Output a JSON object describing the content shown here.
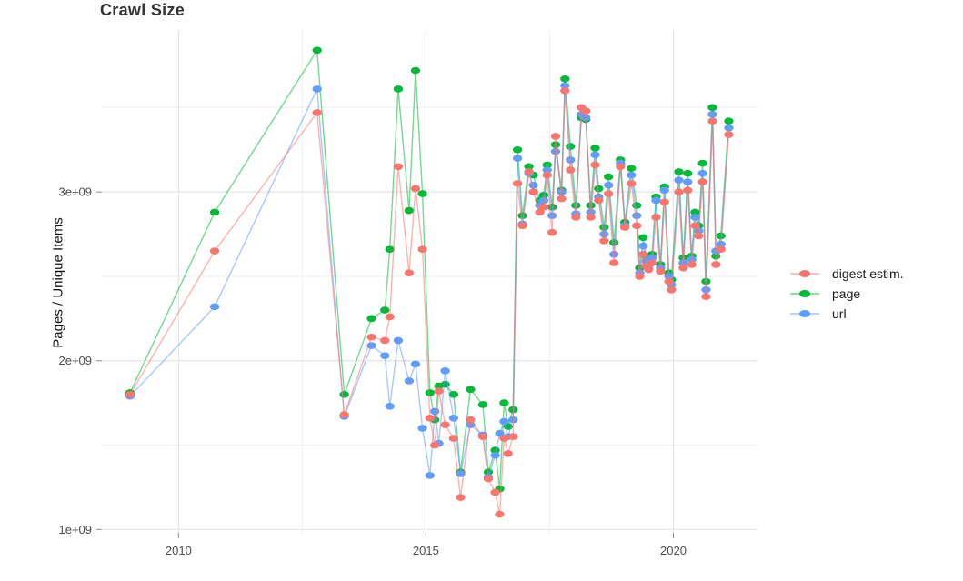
{
  "title": "Crawl Size",
  "chart_data": {
    "type": "line",
    "title": "Crawl Size",
    "xlabel": "",
    "ylabel": "Pages / Unique Items",
    "x_unit": "year (crawl date)",
    "y_unit": "count, values in units of 1e9 (billions)",
    "xlim": [
      2008.45,
      2021.7
    ],
    "ylim": [
      0.98,
      3.96
    ],
    "grid": true,
    "legend_position": "right",
    "axes": {
      "x_ticks": [
        {
          "value": 2010,
          "label": "2010"
        },
        {
          "value": 2015,
          "label": "2015"
        },
        {
          "value": 2020,
          "label": "2020"
        }
      ],
      "x_minor": [
        2012.5,
        2017.5
      ],
      "y_ticks": [
        {
          "value": 1,
          "label": "1e+09"
        },
        {
          "value": 2,
          "label": "2e+09"
        },
        {
          "value": 3,
          "label": "3e+09"
        }
      ],
      "y_minor": [
        1.5,
        2.5,
        3.5
      ]
    },
    "series": [
      {
        "name": "digest estim.",
        "color": "#F8766D",
        "points": [
          [
            2009.02,
            1.8
          ],
          [
            2010.73,
            2.65
          ],
          [
            2012.8,
            3.47
          ],
          [
            2013.35,
            1.68
          ],
          [
            2013.9,
            2.14
          ],
          [
            2014.17,
            2.12
          ],
          [
            2014.27,
            2.26
          ],
          [
            2014.44,
            3.15
          ],
          [
            2014.66,
            2.52
          ],
          [
            2014.79,
            3.02
          ],
          [
            2014.93,
            2.66
          ],
          [
            2015.08,
            1.66
          ],
          [
            2015.18,
            1.5
          ],
          [
            2015.26,
            1.82
          ],
          [
            2015.39,
            1.62
          ],
          [
            2015.56,
            1.54
          ],
          [
            2015.7,
            1.19
          ],
          [
            2015.9,
            1.65
          ],
          [
            2016.15,
            1.55
          ],
          [
            2016.26,
            1.3
          ],
          [
            2016.4,
            1.22
          ],
          [
            2016.49,
            1.09
          ],
          [
            2016.58,
            1.54
          ],
          [
            2016.66,
            1.45
          ],
          [
            2016.76,
            1.55
          ],
          [
            2016.85,
            3.05
          ],
          [
            2016.95,
            2.8
          ],
          [
            2017.08,
            3.12
          ],
          [
            2017.17,
            3.0
          ],
          [
            2017.3,
            2.88
          ],
          [
            2017.38,
            2.91
          ],
          [
            2017.45,
            3.1
          ],
          [
            2017.55,
            2.76
          ],
          [
            2017.62,
            3.33
          ],
          [
            2017.74,
            2.96
          ],
          [
            2017.81,
            3.6
          ],
          [
            2017.92,
            3.13
          ],
          [
            2018.03,
            2.85
          ],
          [
            2018.14,
            3.5
          ],
          [
            2018.23,
            3.48
          ],
          [
            2018.33,
            2.85
          ],
          [
            2018.42,
            3.16
          ],
          [
            2018.49,
            2.95
          ],
          [
            2018.6,
            2.71
          ],
          [
            2018.69,
            2.99
          ],
          [
            2018.8,
            2.58
          ],
          [
            2018.93,
            3.15
          ],
          [
            2019.02,
            2.79
          ],
          [
            2019.15,
            3.05
          ],
          [
            2019.26,
            2.8
          ],
          [
            2019.32,
            2.5
          ],
          [
            2019.39,
            2.63
          ],
          [
            2019.45,
            2.56
          ],
          [
            2019.5,
            2.54
          ],
          [
            2019.57,
            2.58
          ],
          [
            2019.65,
            2.85
          ],
          [
            2019.74,
            2.53
          ],
          [
            2019.82,
            2.94
          ],
          [
            2019.91,
            2.47
          ],
          [
            2019.96,
            2.42
          ],
          [
            2020.11,
            3.0
          ],
          [
            2020.2,
            2.55
          ],
          [
            2020.29,
            3.01
          ],
          [
            2020.37,
            2.57
          ],
          [
            2020.44,
            2.8
          ],
          [
            2020.51,
            2.74
          ],
          [
            2020.59,
            3.06
          ],
          [
            2020.66,
            2.38
          ],
          [
            2020.79,
            3.42
          ],
          [
            2020.86,
            2.57
          ],
          [
            2020.96,
            2.66
          ],
          [
            2021.12,
            3.34
          ]
        ]
      },
      {
        "name": "page",
        "color": "#00BA38",
        "points": [
          [
            2009.02,
            1.81
          ],
          [
            2010.73,
            2.88
          ],
          [
            2012.8,
            3.84
          ],
          [
            2013.35,
            1.8
          ],
          [
            2013.9,
            2.25
          ],
          [
            2014.17,
            2.3
          ],
          [
            2014.27,
            2.66
          ],
          [
            2014.44,
            3.61
          ],
          [
            2014.66,
            2.89
          ],
          [
            2014.79,
            3.72
          ],
          [
            2014.93,
            2.99
          ],
          [
            2015.08,
            1.81
          ],
          [
            2015.18,
            1.65
          ],
          [
            2015.26,
            1.85
          ],
          [
            2015.39,
            1.86
          ],
          [
            2015.56,
            1.8
          ],
          [
            2015.7,
            1.34
          ],
          [
            2015.9,
            1.83
          ],
          [
            2016.15,
            1.74
          ],
          [
            2016.26,
            1.34
          ],
          [
            2016.4,
            1.47
          ],
          [
            2016.49,
            1.24
          ],
          [
            2016.58,
            1.75
          ],
          [
            2016.66,
            1.61
          ],
          [
            2016.76,
            1.71
          ],
          [
            2016.85,
            3.25
          ],
          [
            2016.95,
            2.86
          ],
          [
            2017.08,
            3.15
          ],
          [
            2017.17,
            3.1
          ],
          [
            2017.3,
            2.95
          ],
          [
            2017.38,
            2.98
          ],
          [
            2017.45,
            3.16
          ],
          [
            2017.55,
            2.91
          ],
          [
            2017.62,
            3.28
          ],
          [
            2017.74,
            3.01
          ],
          [
            2017.81,
            3.67
          ],
          [
            2017.92,
            3.27
          ],
          [
            2018.03,
            2.92
          ],
          [
            2018.14,
            3.44
          ],
          [
            2018.23,
            3.43
          ],
          [
            2018.33,
            2.92
          ],
          [
            2018.42,
            3.26
          ],
          [
            2018.49,
            3.02
          ],
          [
            2018.6,
            2.79
          ],
          [
            2018.69,
            3.09
          ],
          [
            2018.8,
            2.7
          ],
          [
            2018.93,
            3.19
          ],
          [
            2019.02,
            2.82
          ],
          [
            2019.15,
            3.14
          ],
          [
            2019.26,
            2.92
          ],
          [
            2019.32,
            2.55
          ],
          [
            2019.39,
            2.73
          ],
          [
            2019.45,
            2.62
          ],
          [
            2019.5,
            2.59
          ],
          [
            2019.57,
            2.63
          ],
          [
            2019.65,
            2.97
          ],
          [
            2019.74,
            2.57
          ],
          [
            2019.82,
            3.03
          ],
          [
            2019.91,
            2.52
          ],
          [
            2019.96,
            2.48
          ],
          [
            2020.11,
            3.12
          ],
          [
            2020.2,
            2.61
          ],
          [
            2020.29,
            3.11
          ],
          [
            2020.37,
            2.62
          ],
          [
            2020.44,
            2.88
          ],
          [
            2020.51,
            2.8
          ],
          [
            2020.59,
            3.17
          ],
          [
            2020.66,
            2.47
          ],
          [
            2020.79,
            3.5
          ],
          [
            2020.86,
            2.62
          ],
          [
            2020.96,
            2.74
          ],
          [
            2021.12,
            3.42
          ]
        ]
      },
      {
        "name": "url",
        "color": "#619CFF",
        "points": [
          [
            2009.02,
            1.79
          ],
          [
            2010.73,
            2.32
          ],
          [
            2012.8,
            3.61
          ],
          [
            2013.35,
            1.67
          ],
          [
            2013.9,
            2.09
          ],
          [
            2014.17,
            2.03
          ],
          [
            2014.27,
            1.73
          ],
          [
            2014.44,
            2.12
          ],
          [
            2014.66,
            1.88
          ],
          [
            2014.79,
            1.98
          ],
          [
            2014.93,
            1.6
          ],
          [
            2015.08,
            1.32
          ],
          [
            2015.18,
            1.7
          ],
          [
            2015.26,
            1.51
          ],
          [
            2015.39,
            1.94
          ],
          [
            2015.56,
            1.66
          ],
          [
            2015.7,
            1.33
          ],
          [
            2015.9,
            1.62
          ],
          [
            2016.15,
            1.56
          ],
          [
            2016.26,
            1.31
          ],
          [
            2016.4,
            1.44
          ],
          [
            2016.49,
            1.57
          ],
          [
            2016.58,
            1.64
          ],
          [
            2016.66,
            1.55
          ],
          [
            2016.76,
            1.65
          ],
          [
            2016.85,
            3.2
          ],
          [
            2016.95,
            2.81
          ],
          [
            2017.08,
            3.11
          ],
          [
            2017.17,
            3.04
          ],
          [
            2017.3,
            2.92
          ],
          [
            2017.38,
            2.95
          ],
          [
            2017.45,
            3.13
          ],
          [
            2017.55,
            2.86
          ],
          [
            2017.62,
            3.24
          ],
          [
            2017.74,
            3.0
          ],
          [
            2017.81,
            3.63
          ],
          [
            2017.92,
            3.19
          ],
          [
            2018.03,
            2.87
          ],
          [
            2018.14,
            3.46
          ],
          [
            2018.23,
            3.44
          ],
          [
            2018.33,
            2.88
          ],
          [
            2018.42,
            3.22
          ],
          [
            2018.49,
            2.97
          ],
          [
            2018.6,
            2.75
          ],
          [
            2018.69,
            3.04
          ],
          [
            2018.8,
            2.63
          ],
          [
            2018.93,
            3.17
          ],
          [
            2019.02,
            2.8
          ],
          [
            2019.15,
            3.1
          ],
          [
            2019.26,
            2.86
          ],
          [
            2019.32,
            2.52
          ],
          [
            2019.39,
            2.68
          ],
          [
            2019.45,
            2.59
          ],
          [
            2019.5,
            2.56
          ],
          [
            2019.57,
            2.61
          ],
          [
            2019.65,
            2.95
          ],
          [
            2019.74,
            2.55
          ],
          [
            2019.82,
            3.01
          ],
          [
            2019.91,
            2.5
          ],
          [
            2019.96,
            2.45
          ],
          [
            2020.11,
            3.07
          ],
          [
            2020.2,
            2.58
          ],
          [
            2020.29,
            3.06
          ],
          [
            2020.37,
            2.6
          ],
          [
            2020.44,
            2.85
          ],
          [
            2020.51,
            2.77
          ],
          [
            2020.59,
            3.11
          ],
          [
            2020.66,
            2.42
          ],
          [
            2020.79,
            3.46
          ],
          [
            2020.86,
            2.65
          ],
          [
            2020.96,
            2.69
          ],
          [
            2021.12,
            3.38
          ]
        ]
      }
    ]
  }
}
